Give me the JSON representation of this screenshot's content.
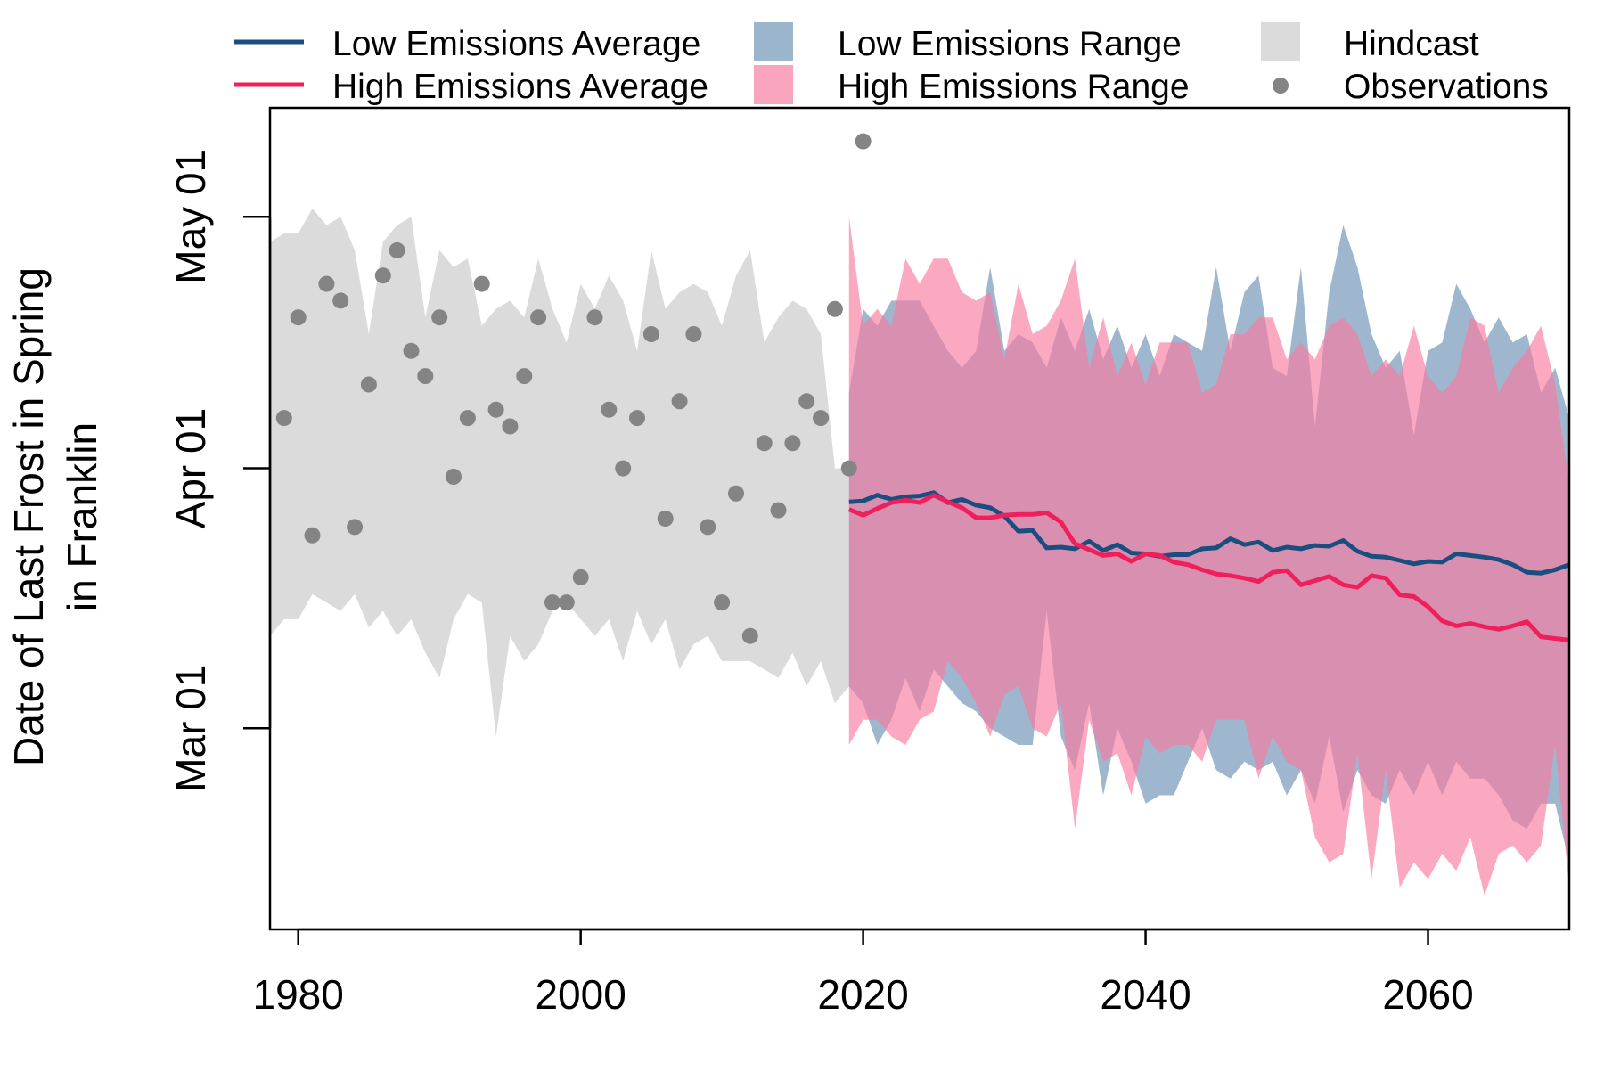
{
  "chart_data": {
    "type": "line",
    "ylabel": [
      "Date of Last Frost in Spring",
      "in Franklin"
    ],
    "xlim": [
      1978,
      2070
    ],
    "x_ticks": [
      1980,
      2000,
      2020,
      2040,
      2060
    ],
    "y_axis": {
      "lim_days": [
        -24,
        74
      ],
      "ticks": [
        {
          "label": "Mar 01",
          "day": 0
        },
        {
          "label": "Apr 01",
          "day": 31
        },
        {
          "label": "May 01",
          "day": 61
        }
      ]
    },
    "legend": [
      {
        "label": "Low Emissions Average",
        "kind": "line",
        "color": "#1a4e7f"
      },
      {
        "label": "Low Emissions Range",
        "kind": "box",
        "color": "#9ab5cc"
      },
      {
        "label": "Hindcast",
        "kind": "box",
        "color": "#dbdbdb"
      },
      {
        "label": "High Emissions Average",
        "kind": "line",
        "color": "#ef1f5b"
      },
      {
        "label": "High Emissions Range",
        "kind": "box",
        "color": "#f9a5be"
      },
      {
        "label": "Observations",
        "kind": "point",
        "color": "#848484"
      }
    ],
    "colors": {
      "low_avg": "#1a4e7f",
      "high_avg": "#ef1f5b",
      "low_range": "#7f9fbd",
      "high_range": "#f97ba0",
      "hindcast": "#dbdbdb",
      "observations": "#848484",
      "legend_low_range": "#9ab5cc",
      "legend_high_range": "#f9a5be"
    },
    "series": [
      {
        "name": "Hindcast",
        "type": "range",
        "x": [
          1978,
          1979,
          1980,
          1981,
          1982,
          1983,
          1984,
          1985,
          1986,
          1987,
          1988,
          1989,
          1990,
          1991,
          1992,
          1993,
          1994,
          1995,
          1996,
          1997,
          1998,
          1999,
          2000,
          2001,
          2002,
          2003,
          2004,
          2005,
          2006,
          2007,
          2008,
          2009,
          2010,
          2011,
          2012,
          2013,
          2014,
          2015,
          2016,
          2017,
          2018,
          2019
        ],
        "upper": [
          58,
          59,
          59,
          62,
          60,
          61,
          57,
          47,
          58,
          60,
          61,
          49,
          57,
          55,
          56,
          48,
          50,
          51,
          49,
          56,
          50,
          46,
          53,
          50,
          54,
          51,
          45,
          57,
          50,
          52,
          53,
          52,
          48,
          54,
          57,
          46,
          49,
          51,
          50,
          47,
          31,
          31
        ],
        "lower": [
          11,
          13,
          13,
          16,
          15,
          14,
          16,
          12,
          14,
          11,
          13,
          9,
          6,
          13,
          16,
          15,
          -1,
          11,
          8,
          10,
          14,
          15,
          13,
          11,
          13,
          8,
          14,
          10,
          13,
          7,
          10,
          11,
          8,
          8,
          8,
          7,
          6,
          9,
          5,
          8,
          3,
          5
        ]
      },
      {
        "name": "Low Emissions Range",
        "type": "range",
        "x": [
          2019,
          2020,
          2021,
          2022,
          2023,
          2024,
          2025,
          2026,
          2027,
          2028,
          2029,
          2030,
          2031,
          2032,
          2033,
          2034,
          2035,
          2036,
          2037,
          2038,
          2039,
          2040,
          2041,
          2042,
          2043,
          2044,
          2045,
          2046,
          2047,
          2048,
          2049,
          2050,
          2051,
          2052,
          2053,
          2054,
          2055,
          2056,
          2057,
          2058,
          2059,
          2060,
          2061,
          2062,
          2063,
          2064,
          2065,
          2066,
          2067,
          2068,
          2069,
          2070
        ],
        "upper": [
          40,
          50,
          48,
          51,
          51,
          51,
          48,
          45,
          43,
          45,
          55,
          45,
          47,
          46,
          43,
          49,
          45,
          50,
          44,
          48,
          43,
          47,
          42,
          47,
          46,
          45,
          55,
          45,
          52,
          54,
          43,
          42,
          55,
          36,
          52,
          60,
          55,
          47,
          43,
          45,
          35,
          45,
          46,
          53,
          50,
          46,
          49,
          46,
          47,
          40,
          43,
          37
        ],
        "lower": [
          5,
          3,
          -2,
          1,
          6,
          2,
          7,
          5,
          3,
          2,
          0,
          -1,
          -2,
          -2,
          14,
          -1,
          -5,
          3,
          -8,
          0,
          -4,
          -9,
          -8,
          -8,
          -4,
          0,
          -5,
          -6,
          -4,
          -5,
          -4,
          -8,
          -5,
          -9,
          -1,
          -10,
          -5,
          -8,
          -9,
          -5,
          -8,
          -4,
          -8,
          -4,
          -6,
          -6,
          -8,
          -11,
          -12,
          -9,
          -9,
          -16
        ]
      },
      {
        "name": "High Emissions Range",
        "type": "range",
        "x": [
          2019,
          2020,
          2021,
          2022,
          2023,
          2024,
          2025,
          2026,
          2027,
          2028,
          2029,
          2030,
          2031,
          2032,
          2033,
          2034,
          2035,
          2036,
          2037,
          2038,
          2039,
          2040,
          2041,
          2042,
          2043,
          2044,
          2045,
          2046,
          2047,
          2048,
          2049,
          2050,
          2051,
          2052,
          2053,
          2054,
          2055,
          2056,
          2057,
          2058,
          2059,
          2060,
          2061,
          2062,
          2063,
          2064,
          2065,
          2066,
          2067,
          2068,
          2069,
          2070
        ],
        "upper": [
          61,
          48,
          50,
          48,
          56,
          53,
          56,
          56,
          52,
          51,
          52,
          44,
          53,
          47,
          48,
          51,
          56,
          43,
          49,
          42,
          46,
          41,
          46,
          46,
          46,
          40,
          41,
          47,
          47,
          49,
          49,
          44,
          46,
          44,
          48,
          49,
          47,
          42,
          44,
          42,
          48,
          42,
          40,
          42,
          49,
          48,
          40,
          43,
          45,
          48,
          41,
          29
        ],
        "lower": [
          -2,
          1,
          1,
          -1,
          -2,
          1,
          2,
          8,
          6,
          3,
          -1,
          4,
          5,
          0,
          -1,
          3,
          -12,
          1,
          -4,
          -3,
          -8,
          -1,
          -3,
          -2,
          -2,
          -4,
          1,
          1,
          1,
          -6,
          -1,
          -4,
          -5,
          -13,
          -16,
          -15,
          -3,
          -18,
          -5,
          -19,
          -16,
          -18,
          -15,
          -17,
          -13,
          -20,
          -15,
          -14,
          -16,
          -14,
          -2,
          -19
        ]
      },
      {
        "name": "Low Emissions Average",
        "type": "line",
        "x": [
          2019,
          2020,
          2021,
          2022,
          2023,
          2024,
          2025,
          2026,
          2027,
          2028,
          2029,
          2030,
          2031,
          2032,
          2033,
          2034,
          2035,
          2036,
          2037,
          2038,
          2039,
          2040,
          2041,
          2042,
          2043,
          2044,
          2045,
          2046,
          2047,
          2048,
          2049,
          2050,
          2051,
          2052,
          2053,
          2054,
          2055,
          2056,
          2057,
          2058,
          2059,
          2060,
          2061,
          2062,
          2063,
          2064,
          2065,
          2066,
          2067,
          2068,
          2069,
          2070
        ],
        "y": [
          27,
          27.1,
          27.8,
          27.3,
          27.6,
          27.7,
          28.1,
          26.9,
          27.3,
          26.6,
          26.3,
          25.3,
          23.5,
          23.6,
          21.5,
          21.6,
          21.4,
          22.3,
          21.2,
          21.9,
          20.9,
          20.8,
          20.5,
          20.7,
          20.7,
          21.4,
          21.5,
          22.6,
          21.9,
          22.2,
          21.2,
          21.6,
          21.4,
          21.8,
          21.7,
          22.4,
          21.1,
          20.5,
          20.4,
          20.0,
          19.6,
          19.9,
          19.8,
          20.8,
          20.6,
          20.4,
          20.1,
          19.5,
          18.6,
          18.5,
          18.9,
          19.5
        ]
      },
      {
        "name": "High Emissions Average",
        "type": "line",
        "x": [
          2019,
          2020,
          2021,
          2022,
          2023,
          2024,
          2025,
          2026,
          2027,
          2028,
          2029,
          2030,
          2031,
          2032,
          2033,
          2034,
          2035,
          2036,
          2037,
          2038,
          2039,
          2040,
          2041,
          2042,
          2043,
          2044,
          2045,
          2046,
          2047,
          2048,
          2049,
          2050,
          2051,
          2052,
          2053,
          2054,
          2055,
          2056,
          2057,
          2058,
          2059,
          2060,
          2061,
          2062,
          2063,
          2064,
          2065,
          2066,
          2067,
          2068,
          2069,
          2070
        ],
        "y": [
          26.1,
          25.4,
          26.2,
          26.9,
          27.2,
          26.9,
          27.8,
          27.0,
          26.3,
          25.1,
          25.1,
          25.4,
          25.5,
          25.5,
          25.7,
          24.6,
          22.0,
          21.3,
          20.6,
          20.8,
          19.9,
          20.8,
          20.6,
          19.8,
          19.5,
          18.9,
          18.4,
          18.2,
          17.9,
          17.5,
          18.6,
          18.8,
          17.1,
          17.6,
          18.1,
          17.1,
          16.8,
          18.2,
          17.9,
          15.9,
          15.7,
          14.5,
          12.8,
          12.2,
          12.5,
          12.1,
          11.8,
          12.2,
          12.7,
          10.9,
          10.7,
          10.5
        ]
      },
      {
        "name": "Observations",
        "type": "scatter",
        "x": [
          1979,
          1980,
          1981,
          1982,
          1983,
          1984,
          1985,
          1986,
          1987,
          1988,
          1989,
          1990,
          1991,
          1992,
          1993,
          1994,
          1995,
          1996,
          1997,
          1998,
          1999,
          2000,
          2001,
          2002,
          2003,
          2004,
          2005,
          2006,
          2007,
          2008,
          2009,
          2010,
          2011,
          2012,
          2013,
          2014,
          2015,
          2016,
          2017,
          2018,
          2019,
          2020
        ],
        "y": [
          37,
          49,
          23,
          53,
          51,
          24,
          41,
          54,
          57,
          45,
          42,
          49,
          30,
          37,
          53,
          38,
          36,
          42,
          49,
          15,
          15,
          18,
          49,
          38,
          31,
          37,
          47,
          25,
          39,
          47,
          24,
          15,
          28,
          11,
          34,
          26,
          34,
          39,
          37,
          50,
          31,
          70
        ]
      }
    ]
  }
}
